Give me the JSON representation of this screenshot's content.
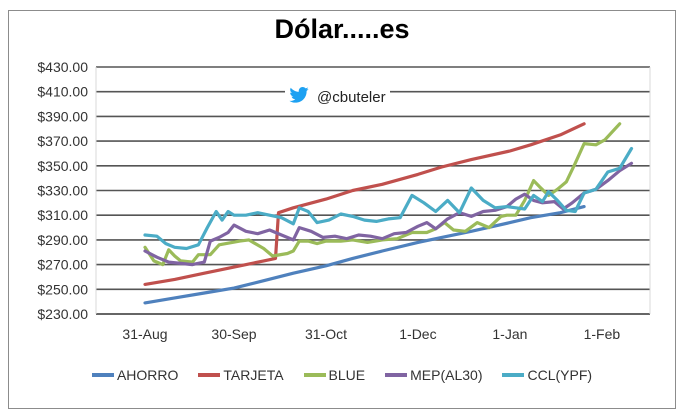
{
  "chart_data": {
    "type": "line",
    "title": "Dólar.....es",
    "watermark": "@cbuteler",
    "xlabel": "",
    "ylabel": "",
    "ylim": [
      230,
      430
    ],
    "y_ticks": [
      "$430.00",
      "$410.00",
      "$390.00",
      "$370.00",
      "$350.00",
      "$330.00",
      "$310.00",
      "$290.00",
      "$270.00",
      "$250.00",
      "$230.00"
    ],
    "x_ticks": [
      "31-Aug",
      "30-Sep",
      "31-Oct",
      "1-Dec",
      "1-Jan",
      "1-Feb"
    ],
    "x_tick_day_offsets": [
      0,
      30,
      61,
      92,
      123,
      154
    ],
    "legend_position": "bottom",
    "grid": "horizontal",
    "series": [
      {
        "name": "AHORRO",
        "color": "#4f81bd",
        "points": [
          [
            0,
            239
          ],
          [
            10,
            243
          ],
          [
            20,
            247
          ],
          [
            30,
            251
          ],
          [
            40,
            257
          ],
          [
            50,
            263
          ],
          [
            61,
            269
          ],
          [
            70,
            275
          ],
          [
            80,
            281
          ],
          [
            92,
            288
          ],
          [
            100,
            292
          ],
          [
            110,
            297
          ],
          [
            123,
            304
          ],
          [
            130,
            308
          ],
          [
            140,
            312
          ],
          [
            148,
            317
          ]
        ]
      },
      {
        "name": "TARJETA",
        "color": "#c0504d",
        "points": [
          [
            0,
            254
          ],
          [
            10,
            258
          ],
          [
            20,
            263
          ],
          [
            30,
            268
          ],
          [
            40,
            273
          ],
          [
            44,
            275
          ],
          [
            45,
            312
          ],
          [
            50,
            316
          ],
          [
            61,
            323
          ],
          [
            70,
            330
          ],
          [
            80,
            335
          ],
          [
            92,
            343
          ],
          [
            100,
            349
          ],
          [
            110,
            355
          ],
          [
            123,
            362
          ],
          [
            130,
            367
          ],
          [
            140,
            375
          ],
          [
            148,
            384
          ]
        ]
      },
      {
        "name": "BLUE",
        "color": "#9bbb59",
        "points": [
          [
            0,
            284
          ],
          [
            3,
            273
          ],
          [
            6,
            270
          ],
          [
            8,
            282
          ],
          [
            10,
            277
          ],
          [
            12,
            273
          ],
          [
            16,
            272
          ],
          [
            18,
            278
          ],
          [
            22,
            278
          ],
          [
            25,
            286
          ],
          [
            32,
            289
          ],
          [
            35,
            290
          ],
          [
            40,
            283
          ],
          [
            43,
            277
          ],
          [
            48,
            279
          ],
          [
            50,
            281
          ],
          [
            52,
            289
          ],
          [
            55,
            289
          ],
          [
            58,
            287
          ],
          [
            61,
            289
          ],
          [
            66,
            289
          ],
          [
            70,
            290
          ],
          [
            75,
            288
          ],
          [
            80,
            290
          ],
          [
            85,
            291
          ],
          [
            90,
            296
          ],
          [
            95,
            296
          ],
          [
            98,
            299
          ],
          [
            101,
            304
          ],
          [
            104,
            298
          ],
          [
            108,
            297
          ],
          [
            112,
            304
          ],
          [
            116,
            300
          ],
          [
            120,
            309
          ],
          [
            122,
            310
          ],
          [
            125,
            310
          ],
          [
            128,
            322
          ],
          [
            131,
            338
          ],
          [
            133,
            333
          ],
          [
            136,
            326
          ],
          [
            139,
            331
          ],
          [
            142,
            337
          ],
          [
            145,
            352
          ],
          [
            148,
            368
          ],
          [
            152,
            367
          ],
          [
            155,
            371
          ],
          [
            160,
            384
          ]
        ]
      },
      {
        "name": "MEP(AL30)",
        "color": "#8064a2",
        "points": [
          [
            0,
            281
          ],
          [
            4,
            276
          ],
          [
            8,
            272
          ],
          [
            12,
            271
          ],
          [
            16,
            270
          ],
          [
            20,
            272
          ],
          [
            22,
            289
          ],
          [
            25,
            292
          ],
          [
            28,
            296
          ],
          [
            30,
            302
          ],
          [
            34,
            297
          ],
          [
            38,
            295
          ],
          [
            42,
            298
          ],
          [
            46,
            294
          ],
          [
            50,
            290
          ],
          [
            52,
            300
          ],
          [
            56,
            297
          ],
          [
            60,
            292
          ],
          [
            64,
            293
          ],
          [
            68,
            291
          ],
          [
            72,
            294
          ],
          [
            76,
            293
          ],
          [
            80,
            291
          ],
          [
            84,
            295
          ],
          [
            88,
            296
          ],
          [
            92,
            301
          ],
          [
            95,
            304
          ],
          [
            98,
            299
          ],
          [
            102,
            307
          ],
          [
            106,
            312
          ],
          [
            110,
            309
          ],
          [
            114,
            313
          ],
          [
            118,
            314
          ],
          [
            122,
            317
          ],
          [
            125,
            323
          ],
          [
            128,
            327
          ],
          [
            131,
            322
          ],
          [
            134,
            320
          ],
          [
            138,
            321
          ],
          [
            141,
            315
          ],
          [
            144,
            320
          ],
          [
            148,
            328
          ],
          [
            152,
            331
          ],
          [
            156,
            338
          ],
          [
            160,
            346
          ],
          [
            164,
            352
          ]
        ]
      },
      {
        "name": "CCL(YPF)",
        "color": "#4bacc6",
        "points": [
          [
            0,
            294
          ],
          [
            4,
            293
          ],
          [
            7,
            287
          ],
          [
            10,
            284
          ],
          [
            14,
            283
          ],
          [
            18,
            286
          ],
          [
            21,
            300
          ],
          [
            24,
            313
          ],
          [
            26,
            306
          ],
          [
            28,
            313
          ],
          [
            30,
            310
          ],
          [
            34,
            310
          ],
          [
            38,
            312
          ],
          [
            42,
            310
          ],
          [
            46,
            308
          ],
          [
            50,
            303
          ],
          [
            52,
            316
          ],
          [
            55,
            313
          ],
          [
            58,
            304
          ],
          [
            62,
            306
          ],
          [
            66,
            311
          ],
          [
            70,
            309
          ],
          [
            74,
            306
          ],
          [
            78,
            305
          ],
          [
            82,
            307
          ],
          [
            86,
            308
          ],
          [
            90,
            326
          ],
          [
            94,
            320
          ],
          [
            98,
            313
          ],
          [
            102,
            322
          ],
          [
            106,
            312
          ],
          [
            110,
            332
          ],
          [
            114,
            322
          ],
          [
            118,
            316
          ],
          [
            122,
            317
          ],
          [
            125,
            316
          ],
          [
            128,
            315
          ],
          [
            131,
            326
          ],
          [
            134,
            321
          ],
          [
            136,
            329
          ],
          [
            139,
            322
          ],
          [
            142,
            314
          ],
          [
            145,
            313
          ],
          [
            148,
            328
          ],
          [
            152,
            331
          ],
          [
            156,
            345
          ],
          [
            160,
            348
          ],
          [
            164,
            364
          ]
        ]
      }
    ]
  }
}
